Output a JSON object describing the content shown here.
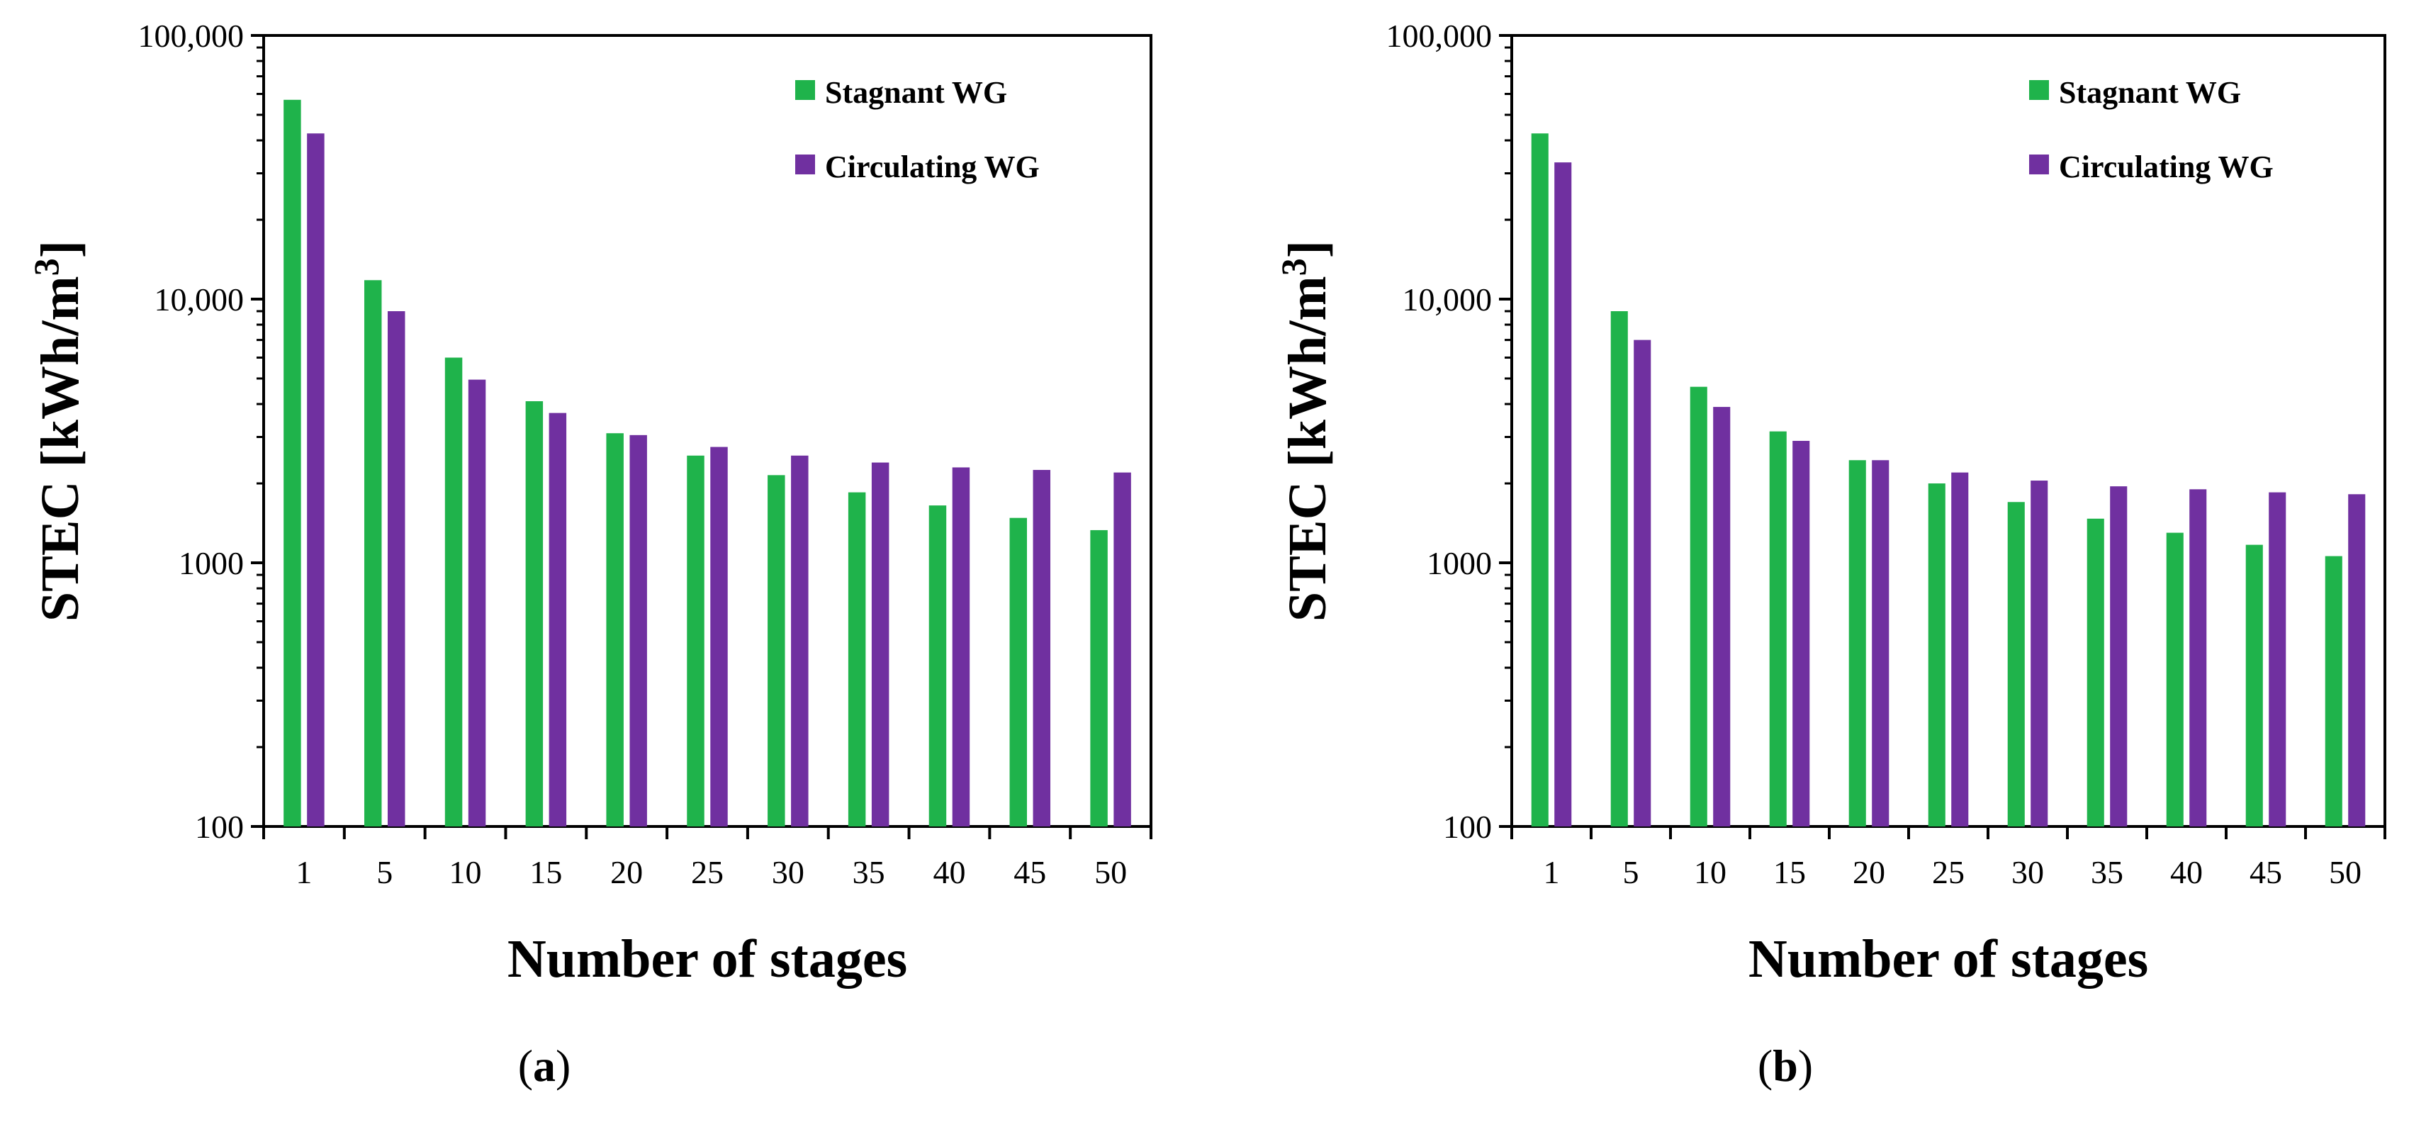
{
  "colors": {
    "stagnant": "#1fb34b",
    "circulating": "#7030a0",
    "axis": "#000000"
  },
  "chart_data": [
    {
      "type": "bar",
      "panel_label": "a",
      "xlabel": "Number of stages",
      "ylabel": "STEC [kWh/m",
      "ylabel_sup": "3",
      "ylabel_suffix": "]",
      "yscale": "log",
      "ylim": [
        100,
        100000
      ],
      "yticks": [
        100,
        1000,
        10000,
        100000
      ],
      "ytick_labels": [
        "100",
        "1000",
        "10,000",
        "100,000"
      ],
      "categories": [
        "1",
        "5",
        "10",
        "15",
        "20",
        "25",
        "30",
        "35",
        "40",
        "45",
        "50"
      ],
      "legend_placement": "top-right",
      "grid": false,
      "series": [
        {
          "name": "Stagnant WG",
          "values": [
            57000,
            11800,
            6000,
            4100,
            3100,
            2550,
            2150,
            1850,
            1650,
            1480,
            1330
          ]
        },
        {
          "name": "Circulating WG",
          "values": [
            42500,
            9000,
            4950,
            3700,
            3050,
            2750,
            2550,
            2400,
            2300,
            2250,
            2200
          ]
        }
      ]
    },
    {
      "type": "bar",
      "panel_label": "b",
      "xlabel": "Number of stages",
      "ylabel": "STEC [kWh/m",
      "ylabel_sup": "3",
      "ylabel_suffix": "]",
      "yscale": "log",
      "ylim": [
        100,
        100000
      ],
      "yticks": [
        100,
        1000,
        10000,
        100000
      ],
      "ytick_labels": [
        "100",
        "1000",
        "10,000",
        "100,000"
      ],
      "categories": [
        "1",
        "5",
        "10",
        "15",
        "20",
        "25",
        "30",
        "35",
        "40",
        "45",
        "50"
      ],
      "legend_placement": "top-right",
      "grid": false,
      "series": [
        {
          "name": "Stagnant WG",
          "values": [
            42500,
            9000,
            4650,
            3150,
            2450,
            2000,
            1700,
            1470,
            1300,
            1170,
            1060
          ]
        },
        {
          "name": "Circulating WG",
          "values": [
            33000,
            7000,
            3900,
            2900,
            2450,
            2200,
            2050,
            1950,
            1900,
            1850,
            1820
          ]
        }
      ]
    }
  ]
}
